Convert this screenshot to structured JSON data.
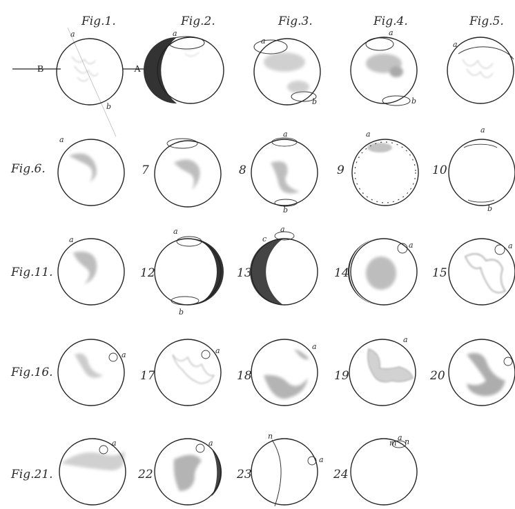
{
  "plate": {
    "header_labels": [
      "Fig.1.",
      "Fig.2.",
      "Fig.3.",
      "Fig.4.",
      "Fig.5."
    ],
    "row_labels": [
      "Fig.6.",
      "Fig.11.",
      "Fig.16.",
      "Fig.21."
    ],
    "numbers": [
      "7",
      "8",
      "9",
      "10",
      "12",
      "13",
      "14",
      "15",
      "17",
      "18",
      "19",
      "20",
      "22",
      "23",
      "24"
    ],
    "axis_labels": {
      "left": "B",
      "right": "A"
    },
    "point_labels": {
      "a": "a",
      "b": "b",
      "c": "c",
      "m": "m",
      "n": "n"
    }
  }
}
